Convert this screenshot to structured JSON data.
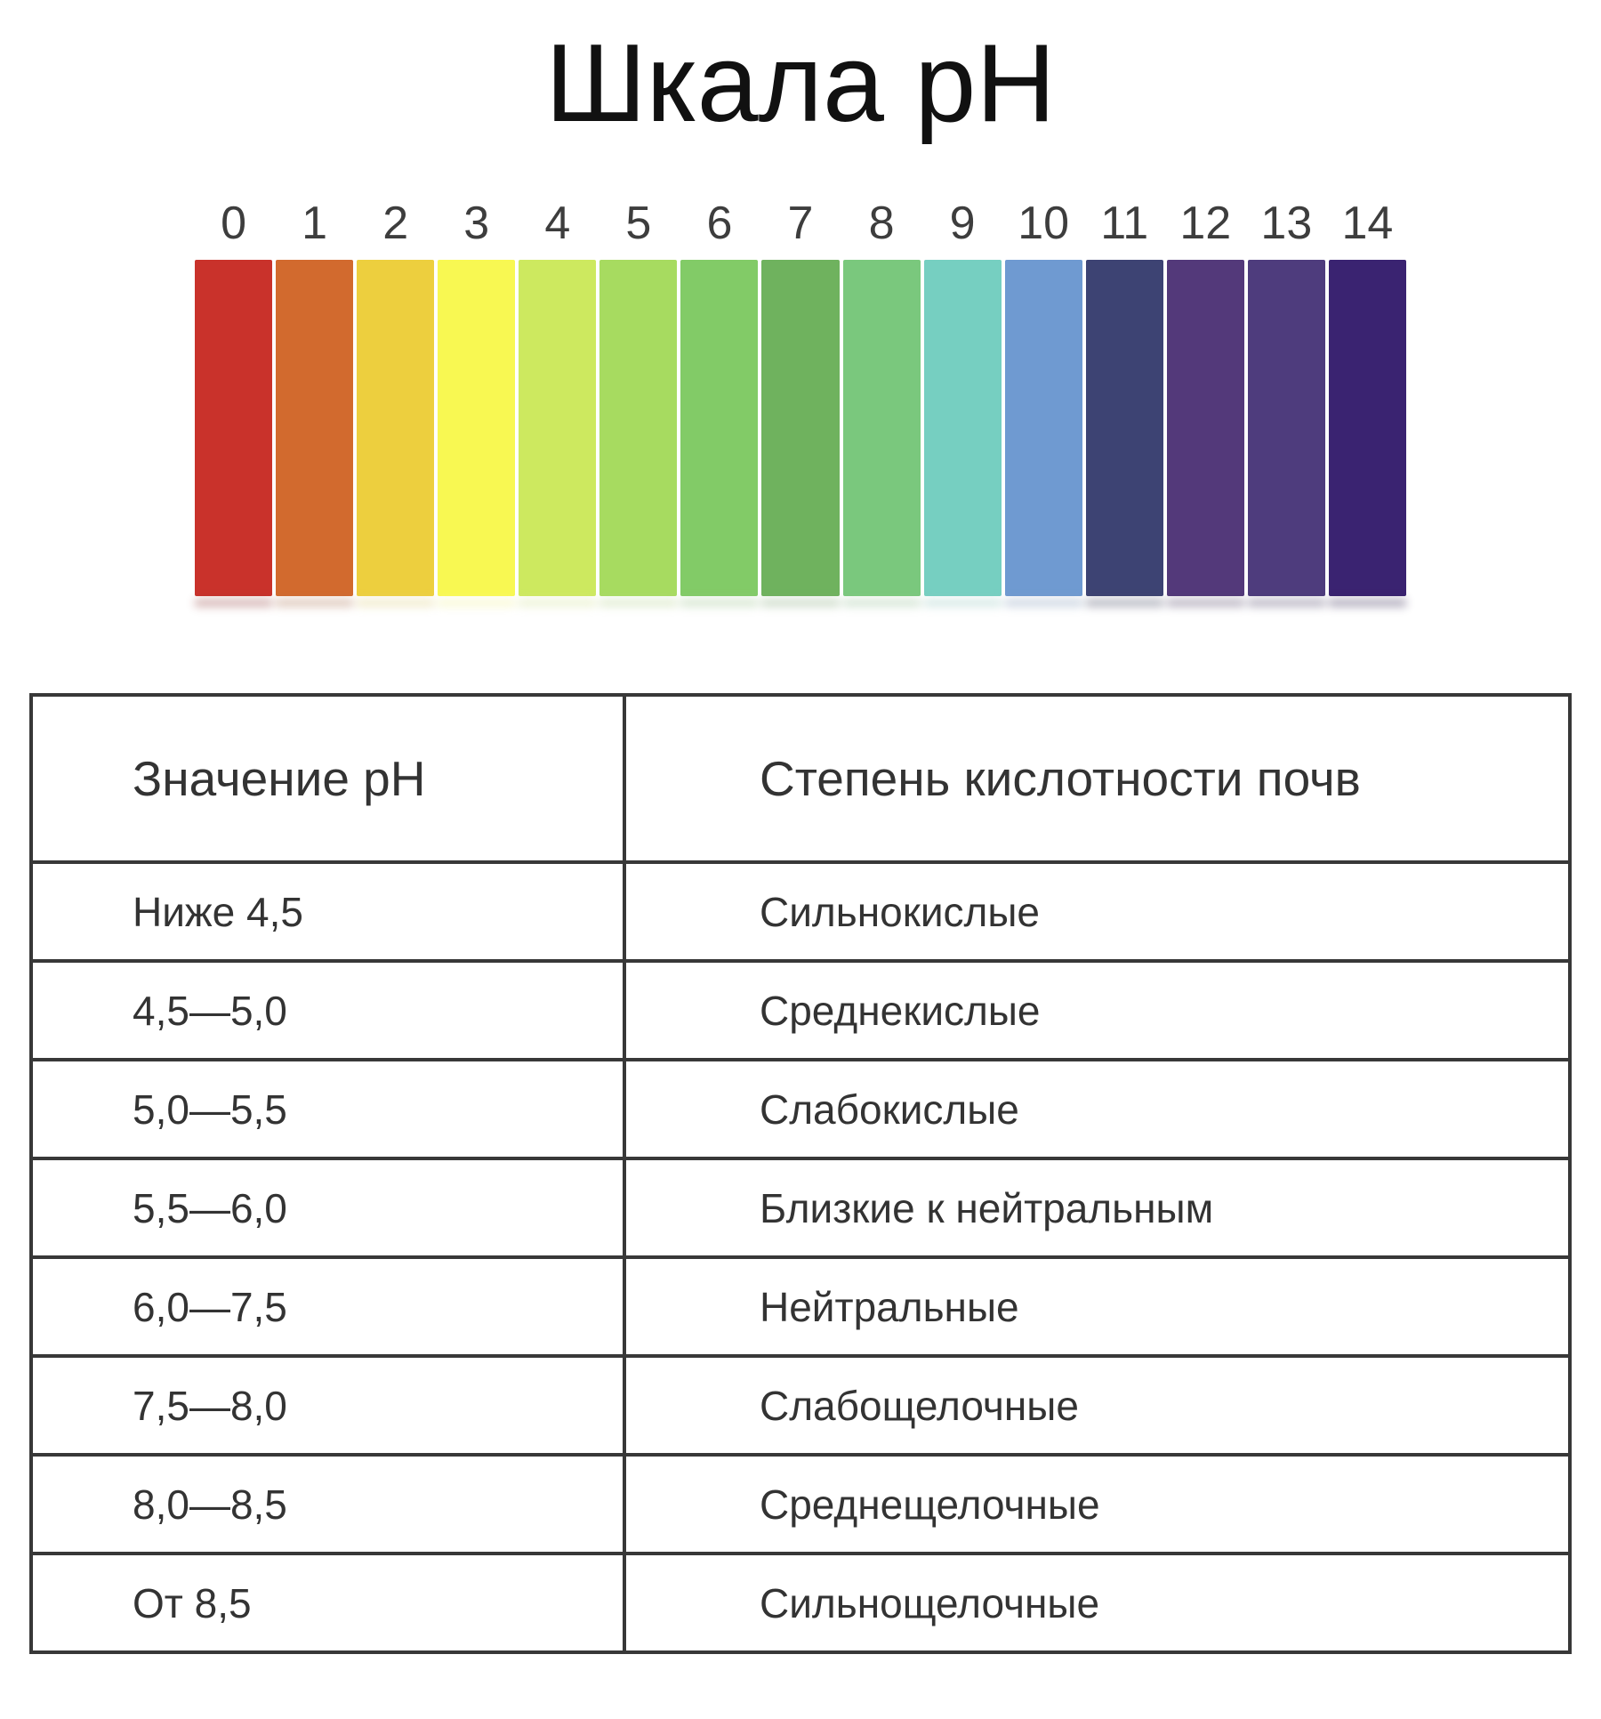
{
  "title": "Шкала pH",
  "scale": {
    "segments": [
      {
        "label": "0",
        "color": "#c9322b"
      },
      {
        "label": "1",
        "color": "#d26a2e"
      },
      {
        "label": "2",
        "color": "#edcf3e"
      },
      {
        "label": "3",
        "color": "#f8f852"
      },
      {
        "label": "4",
        "color": "#cde95f"
      },
      {
        "label": "5",
        "color": "#a7db60"
      },
      {
        "label": "6",
        "color": "#82cb67"
      },
      {
        "label": "7",
        "color": "#6fb25e"
      },
      {
        "label": "8",
        "color": "#7ac87d"
      },
      {
        "label": "9",
        "color": "#76cfc1"
      },
      {
        "label": "10",
        "color": "#6f9ad1"
      },
      {
        "label": "11",
        "color": "#3d4373"
      },
      {
        "label": "12",
        "color": "#53397a"
      },
      {
        "label": "13",
        "color": "#4e3c7d"
      },
      {
        "label": "14",
        "color": "#3a2371"
      }
    ]
  },
  "table": {
    "headers": [
      "Значение pH",
      "Степень кислотности почв"
    ],
    "rows": [
      [
        "Ниже 4,5",
        "Сильнокислые"
      ],
      [
        "4,5—5,0",
        "Среднекислые"
      ],
      [
        "5,0—5,5",
        "Слабокислые"
      ],
      [
        "5,5—6,0",
        "Близкие к нейтральным"
      ],
      [
        "6,0—7,5",
        "Нейтральные"
      ],
      [
        "7,5—8,0",
        "Слабощелочные"
      ],
      [
        "8,0—8,5",
        "Среднещелочные"
      ],
      [
        "От 8,5",
        "Сильнощелочные"
      ]
    ]
  },
  "chart_data": {
    "type": "table",
    "title": "Шкала pH",
    "scale": {
      "min": 0,
      "max": 14,
      "tick_labels": [
        "0",
        "1",
        "2",
        "3",
        "4",
        "5",
        "6",
        "7",
        "8",
        "9",
        "10",
        "11",
        "12",
        "13",
        "14"
      ],
      "segment_colors": [
        "#c9322b",
        "#d26a2e",
        "#edcf3e",
        "#f8f852",
        "#cde95f",
        "#a7db60",
        "#82cb67",
        "#6fb25e",
        "#7ac87d",
        "#76cfc1",
        "#6f9ad1",
        "#3d4373",
        "#53397a",
        "#4e3c7d",
        "#3a2371"
      ]
    },
    "columns": [
      "Значение pH",
      "Степень кислотности почв"
    ],
    "rows": [
      [
        "Ниже 4,5",
        "Сильнокислые"
      ],
      [
        "4,5—5,0",
        "Среднекислые"
      ],
      [
        "5,0—5,5",
        "Слабокислые"
      ],
      [
        "5,5—6,0",
        "Близкие к нейтральным"
      ],
      [
        "6,0—7,5",
        "Нейтральные"
      ],
      [
        "7,5—8,0",
        "Слабощелочные"
      ],
      [
        "8,0—8,5",
        "Среднещелочные"
      ],
      [
        "От 8,5",
        "Сильнощелочные"
      ]
    ]
  }
}
